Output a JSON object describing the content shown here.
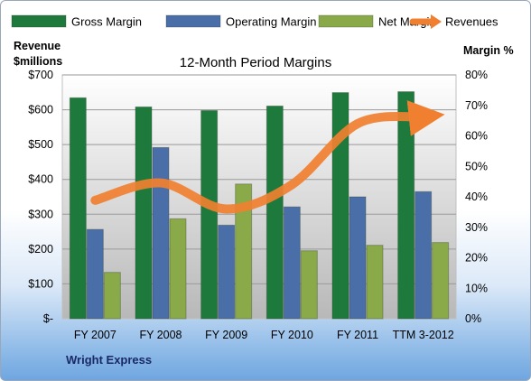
{
  "chart_data": {
    "type": "bar",
    "title": "12-Month Period Margins",
    "left_axis_label_line1": "Revenue",
    "left_axis_label_line2": "$millions",
    "right_axis_label": "Margin %",
    "categories": [
      "FY 2007",
      "FY 2008",
      "FY 2009",
      "FY 2010",
      "FY 2011",
      "TTM 3-2012"
    ],
    "left_ticks": [
      "$-",
      "$100",
      "$200",
      "$300",
      "$400",
      "$500",
      "$600",
      "$700"
    ],
    "right_ticks": [
      "0%",
      "10%",
      "20%",
      "30%",
      "40%",
      "50%",
      "60%",
      "70%",
      "80%"
    ],
    "ylim_left": [
      0,
      700
    ],
    "ylim_right": [
      0,
      80
    ],
    "grid": true,
    "legend_position": "top",
    "series": [
      {
        "name": "Gross Margin",
        "kind": "bar",
        "axis": "right",
        "color": "#1e7a3c",
        "values": [
          72.5,
          69.5,
          68.3,
          69.8,
          74.2,
          74.5
        ]
      },
      {
        "name": "Operating Margin",
        "kind": "bar",
        "axis": "right",
        "color": "#4a6ea8",
        "values": [
          29.3,
          56.2,
          30.7,
          36.7,
          40.0,
          41.7
        ]
      },
      {
        "name": "Net Margin",
        "kind": "bar",
        "axis": "right",
        "color": "#8aaa4a",
        "values": [
          15.2,
          32.8,
          44.2,
          22.3,
          24.1,
          25.0
        ]
      },
      {
        "name": "Revenues",
        "kind": "line",
        "axis": "left",
        "color": "#f08030",
        "values": [
          340,
          390,
          315,
          385,
          560,
          580
        ]
      }
    ],
    "footer": "Wright Express"
  }
}
